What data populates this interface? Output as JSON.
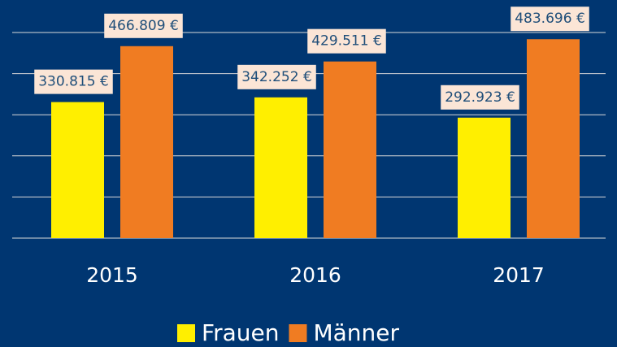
{
  "chart_data": {
    "type": "bar",
    "categories": [
      "2015",
      "2016",
      "2017"
    ],
    "series": [
      {
        "name": "Frauen",
        "color": "#ffef00",
        "values": [
          330815,
          342252,
          292923
        ],
        "value_labels": [
          "330.815 €",
          "342.252 €",
          "292.923 €"
        ]
      },
      {
        "name": "Männer",
        "color": "#f07c22",
        "values": [
          466809,
          429511,
          483696
        ],
        "value_labels": [
          "466.809 €",
          "429.511 €",
          "483.696 €"
        ]
      }
    ],
    "ylim": [
      0,
      500000
    ],
    "yticks": [
      0,
      100000,
      200000,
      300000,
      400000,
      500000
    ],
    "grid": true
  }
}
